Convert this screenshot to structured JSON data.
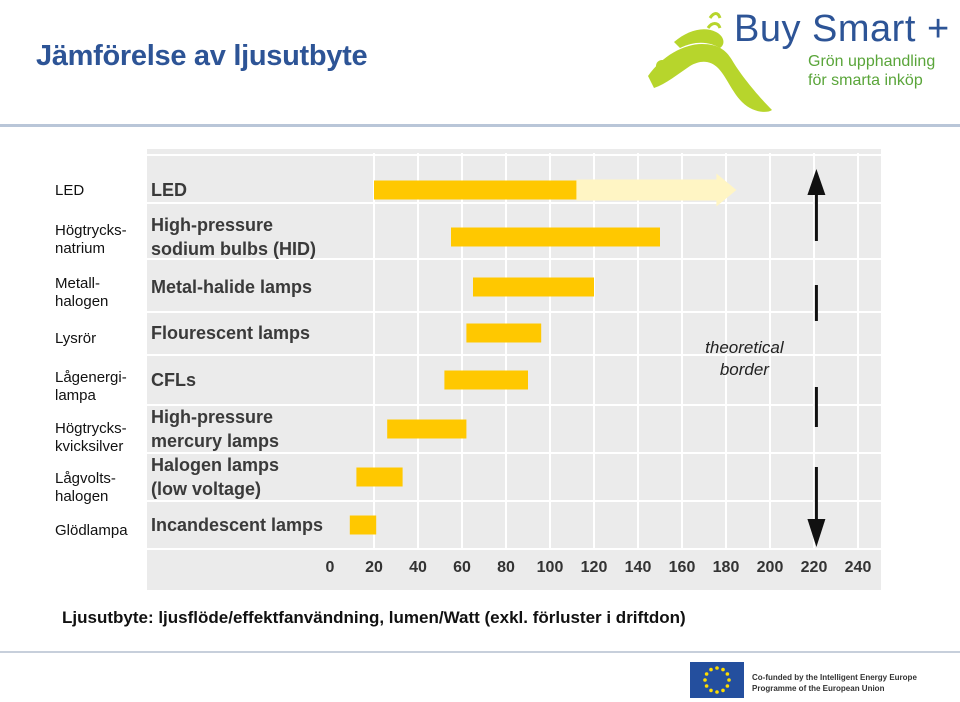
{
  "page": {
    "title": "Jämförelse av ljusutbyte",
    "caption": "Ljusutbyte: ljusflöde/effektfanvändning, lumen/Watt (exkl. förluster i driftdon)"
  },
  "brand": {
    "name": "Buy Smart +",
    "tagline_1": "Grön upphandling",
    "tagline_2": "för smarta inköp",
    "color_primary": "#2d5496",
    "color_green": "#5aa53a",
    "color_lime": "#b7d52c"
  },
  "footer": {
    "eu_text_1": "Co-funded by the Intelligent Energy Europe",
    "eu_text_2": "Programme of the European Union"
  },
  "swedish_labels": [
    {
      "lines": [
        "LED"
      ]
    },
    {
      "lines": [
        "Högtrycks-",
        "natrium"
      ]
    },
    {
      "lines": [
        "Metall-",
        "halogen"
      ]
    },
    {
      "lines": [
        "Lysrör"
      ]
    },
    {
      "lines": [
        "Lågenergi-",
        "lampa"
      ]
    },
    {
      "lines": [
        "Högtrycks-",
        "kvicksilver"
      ]
    },
    {
      "lines": [
        "Lågvolts-",
        "halogen"
      ]
    },
    {
      "lines": [
        "Glödlampa"
      ]
    }
  ],
  "chart_data": {
    "type": "bar",
    "orientation": "horizontal",
    "bar_style": "range",
    "categories": [
      "LED",
      "High-pressure sodium bulbs (HID)",
      "Metal-halide lamps",
      "Flourescent lamps",
      "CFLs",
      "High-pressure mercury lamps",
      "Halogen lamps (low voltage)",
      "Incandescent lamps"
    ],
    "category_lines": [
      [
        "LED"
      ],
      [
        "High-pressure",
        "sodium bulbs (HID)"
      ],
      [
        "Metal-halide lamps"
      ],
      [
        "Flourescent lamps"
      ],
      [
        "CFLs"
      ],
      [
        "High-pressure",
        "mercury lamps"
      ],
      [
        "Halogen lamps",
        "(low voltage)"
      ],
      [
        "Incandescent lamps"
      ]
    ],
    "ranges": [
      [
        20,
        112
      ],
      [
        55,
        150
      ],
      [
        65,
        120
      ],
      [
        62,
        96
      ],
      [
        52,
        90
      ],
      [
        26,
        62
      ],
      [
        12,
        33
      ],
      [
        9,
        21
      ]
    ],
    "led_potential_arrow": [
      112,
      182
    ],
    "xlim": [
      0,
      240
    ],
    "xticks": [
      0,
      20,
      40,
      60,
      80,
      100,
      120,
      140,
      160,
      180,
      200,
      220,
      240
    ],
    "xlabel": "",
    "ylabel": "",
    "grid": true,
    "annotation": {
      "lines": [
        "theoretical",
        "border"
      ],
      "x": 222
    },
    "bar_color": "#ffc800",
    "arrow_color": "#fff5c4",
    "panel_color": "#ebebeb"
  }
}
